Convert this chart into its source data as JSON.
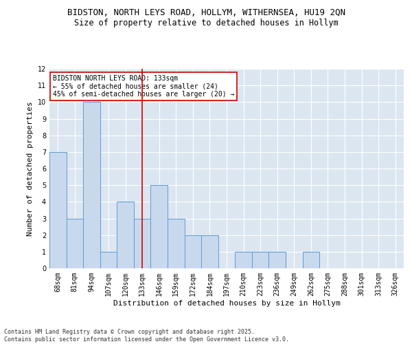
{
  "title1": "BIDSTON, NORTH LEYS ROAD, HOLLYM, WITHERNSEA, HU19 2QN",
  "title2": "Size of property relative to detached houses in Hollym",
  "xlabel": "Distribution of detached houses by size in Hollym",
  "ylabel": "Number of detached properties",
  "bins": [
    "68sqm",
    "81sqm",
    "94sqm",
    "107sqm",
    "120sqm",
    "133sqm",
    "146sqm",
    "159sqm",
    "172sqm",
    "184sqm",
    "197sqm",
    "210sqm",
    "223sqm",
    "236sqm",
    "249sqm",
    "262sqm",
    "275sqm",
    "288sqm",
    "301sqm",
    "313sqm",
    "326sqm"
  ],
  "values": [
    7,
    3,
    10,
    1,
    4,
    3,
    5,
    3,
    2,
    2,
    0,
    1,
    1,
    1,
    0,
    1,
    0,
    0,
    0,
    0,
    0
  ],
  "bar_color": "#c9d9ed",
  "bar_edge_color": "#5b9bd5",
  "red_line_index": 5,
  "annotation_text": "BIDSTON NORTH LEYS ROAD: 133sqm\n← 55% of detached houses are smaller (24)\n45% of semi-detached houses are larger (20) →",
  "annotation_box_color": "#ffffff",
  "annotation_box_edge": "#cc0000",
  "vline_color": "#cc0000",
  "ylim": [
    0,
    12
  ],
  "yticks": [
    0,
    1,
    2,
    3,
    4,
    5,
    6,
    7,
    8,
    9,
    10,
    11,
    12
  ],
  "background_color": "#dce6f1",
  "grid_color": "#ffffff",
  "footer": "Contains HM Land Registry data © Crown copyright and database right 2025.\nContains public sector information licensed under the Open Government Licence v3.0.",
  "title_fontsize": 9,
  "subtitle_fontsize": 8.5,
  "tick_fontsize": 7,
  "ylabel_fontsize": 8,
  "xlabel_fontsize": 8,
  "annotation_fontsize": 7,
  "footer_fontsize": 6
}
